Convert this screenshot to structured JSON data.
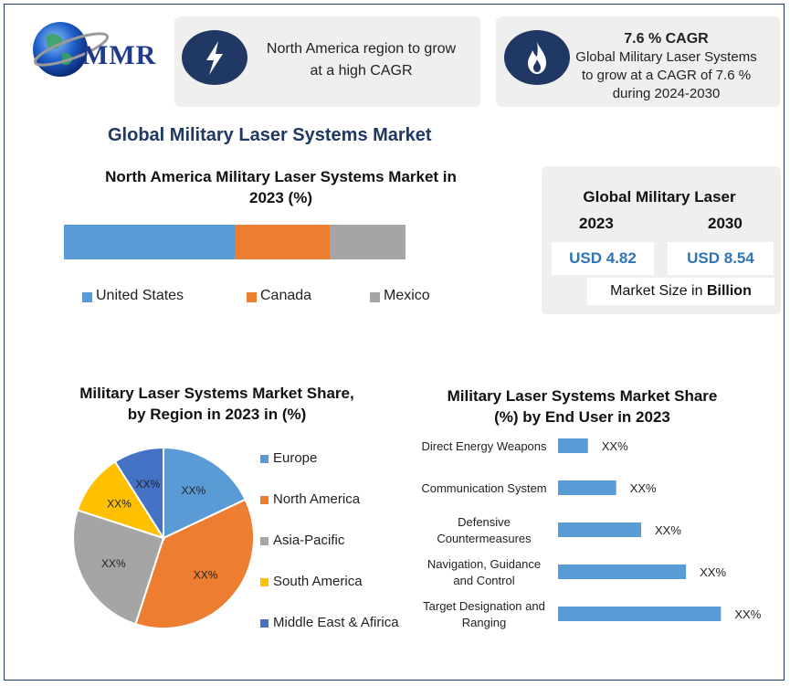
{
  "logo": {
    "text": "MMR"
  },
  "info_cards": [
    {
      "text_line1": "North America region to grow",
      "text_line2": "at a high CAGR"
    },
    {
      "heading": "7.6 % CAGR",
      "text_line1": "Global Military Laser Systems",
      "text_line2": "to grow at a CAGR of 7.6 %",
      "text_line3": "during 2024-2030"
    }
  ],
  "main_title": "Global Military Laser Systems Market",
  "market_size": {
    "title": "Global Military Laser",
    "year1": "2023",
    "year2": "2030",
    "value1": "USD 4.82",
    "value2": "USD 8.54",
    "footer_prefix": "Market Size in ",
    "footer_bold": "Billion"
  },
  "colors": {
    "blue": "#5b9bd5",
    "orange": "#ed7d31",
    "gray": "#a5a5a5",
    "yellow": "#ffc000",
    "darkblue": "#4472c4",
    "navy": "#1f3864"
  },
  "chart_data": [
    {
      "type": "bar",
      "orientation": "horizontal-stacked",
      "title_line1": "North America Military Laser Systems Market in",
      "title_line2": "2023 (%)",
      "series": [
        {
          "name": "United States",
          "values": [
            50
          ]
        },
        {
          "name": "Canada",
          "values": [
            28
          ]
        },
        {
          "name": "Mexico",
          "values": [
            22
          ]
        }
      ],
      "legend": "bottom"
    },
    {
      "type": "pie",
      "title_line1": "Military Laser Systems Market Share,",
      "title_line2": "by Region in 2023 in (%)",
      "categories": [
        "Europe",
        "North America",
        "Asia-Pacific",
        "South America",
        "Middle East & Afirica"
      ],
      "values": [
        18,
        37,
        25,
        11,
        9
      ],
      "data_labels": [
        "XX%",
        "XX%",
        "XX%",
        "XX%",
        "XX%"
      ],
      "legend": "right"
    },
    {
      "type": "bar",
      "orientation": "horizontal",
      "title_line1": "Military Laser Systems Market Share",
      "title_line2": "(%) by End User in 2023",
      "categories": [
        [
          "Direct Energy Weapons"
        ],
        [
          "Communication System"
        ],
        [
          "Defensive",
          "Countermeasures"
        ],
        [
          "Navigation, Guidance",
          "and Control"
        ],
        [
          "Target Designation and",
          "Ranging"
        ]
      ],
      "values": [
        18,
        35,
        50,
        77,
        98
      ],
      "xlim": [
        0,
        100
      ],
      "data_labels": [
        "XX%",
        "XX%",
        "XX%",
        "XX%",
        "XX%"
      ]
    }
  ]
}
